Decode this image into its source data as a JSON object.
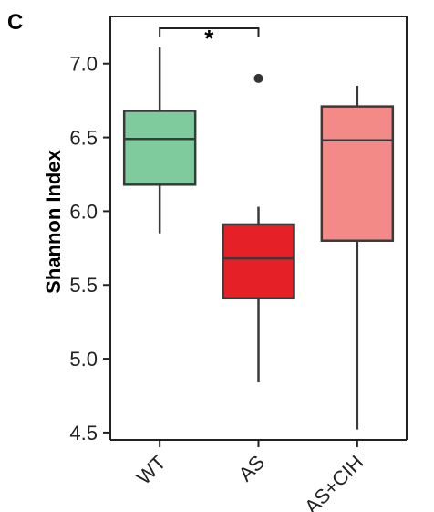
{
  "panel_label": "C",
  "chart_data": {
    "type": "box",
    "title": "",
    "xlabel": "",
    "ylabel": "Shannon Index",
    "ylim": [
      4.45,
      7.32
    ],
    "yticks": [
      4.5,
      5.0,
      5.5,
      6.0,
      6.5,
      7.0
    ],
    "ytick_labels": [
      "4.5",
      "5.0",
      "5.5",
      "6.0",
      "6.5",
      "7.0"
    ],
    "grid": false,
    "legend": "none",
    "categories": [
      "WT",
      "AS",
      "AS+CIH"
    ],
    "boxes": [
      {
        "category": "WT",
        "color": "#7fcb9d",
        "min": 5.85,
        "q1": 6.18,
        "median": 6.49,
        "q3": 6.68,
        "max": 7.11,
        "outliers": []
      },
      {
        "category": "AS",
        "color": "#e52127",
        "min": 4.84,
        "q1": 5.41,
        "median": 5.68,
        "q3": 5.91,
        "max": 6.03,
        "outliers": [
          6.9
        ]
      },
      {
        "category": "AS+CIH",
        "color": "#f38a87",
        "min": 4.52,
        "q1": 5.8,
        "median": 6.48,
        "q3": 6.71,
        "max": 6.85,
        "outliers": []
      }
    ],
    "annotations": [
      {
        "type": "significance",
        "from": "WT",
        "to": "AS",
        "text": "*"
      }
    ]
  }
}
